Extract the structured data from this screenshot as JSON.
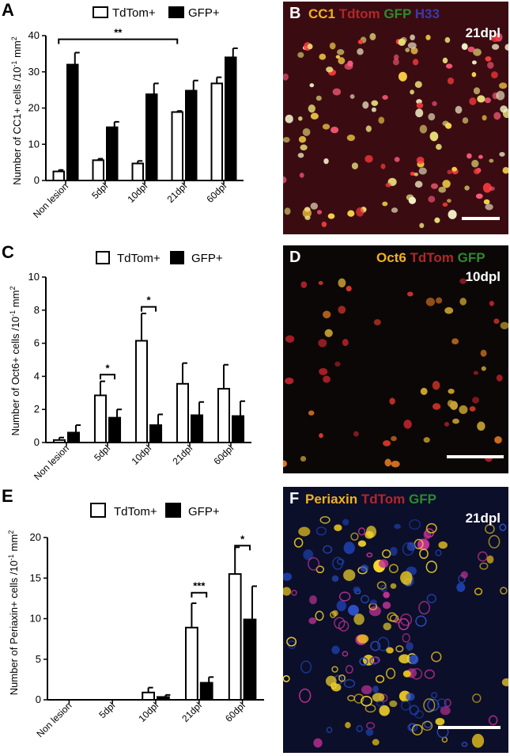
{
  "charts": [
    {
      "panel_letter": "A",
      "ylabel_main": "Number of CC1+ cells /10",
      "ylabel_exp": "-1",
      "ylabel_unit": " mm",
      "ylabel_exp2": "2",
      "legend": [
        "TdTom+",
        "GFP+"
      ]
    },
    {
      "panel_letter": "C",
      "ylabel_main": "Number of Oct6+ cells /10",
      "ylabel_exp": "-1",
      "ylabel_unit": " mm",
      "ylabel_exp2": "2",
      "legend": [
        "TdTom+",
        "GFP+"
      ]
    },
    {
      "panel_letter": "E",
      "ylabel_main": "Number of Periaxin+ cells /10",
      "ylabel_exp": "-1",
      "ylabel_unit": " mm",
      "ylabel_exp2": "2",
      "legend": [
        "TdTom+",
        "GFP+"
      ]
    }
  ],
  "chart_data": [
    {
      "type": "bar",
      "categories": [
        "Non lesion",
        "5dpl",
        "10dpl",
        "21dpl",
        "60dpl"
      ],
      "ylim": [
        0,
        40
      ],
      "yticks": [
        0,
        10,
        20,
        30,
        40
      ],
      "series": [
        {
          "name": "TdTom+",
          "values": [
            2.5,
            5.6,
            4.7,
            18.9,
            26.8
          ],
          "errors": [
            0.4,
            0.4,
            0.7,
            0.3,
            1.7
          ]
        },
        {
          "name": "GFP+",
          "values": [
            32.0,
            14.7,
            23.8,
            24.8,
            34.0
          ],
          "errors": [
            3.3,
            1.5,
            3.0,
            2.8,
            2.5
          ]
        }
      ],
      "significance": [
        {
          "label": "**",
          "from": 0,
          "to": 3,
          "level": 39
        }
      ]
    },
    {
      "type": "bar",
      "categories": [
        "Non lesion",
        "5dpl",
        "10dpl",
        "21dpl",
        "60dpl"
      ],
      "ylim": [
        0,
        10
      ],
      "yticks": [
        0,
        2,
        4,
        6,
        8,
        10
      ],
      "series": [
        {
          "name": "TdTom+",
          "values": [
            0.15,
            2.85,
            6.15,
            3.55,
            3.25
          ],
          "errors": [
            0.15,
            0.85,
            1.65,
            1.25,
            1.45
          ]
        },
        {
          "name": "GFP+",
          "values": [
            0.6,
            1.5,
            1.05,
            1.65,
            1.6
          ],
          "errors": [
            0.45,
            0.5,
            0.65,
            0.8,
            0.9
          ]
        }
      ],
      "significance": [
        {
          "label": "*",
          "group": 1,
          "level": 4.1
        },
        {
          "label": "*",
          "group": 2,
          "level": 8.2
        }
      ]
    },
    {
      "type": "bar",
      "categories": [
        "Non lesion",
        "5dpl",
        "10dpl",
        "21dpl",
        "60dpl"
      ],
      "ylim": [
        0,
        20
      ],
      "yticks": [
        0,
        5,
        10,
        15,
        20
      ],
      "series": [
        {
          "name": "TdTom+",
          "values": [
            0,
            0,
            0.9,
            8.9,
            15.5
          ],
          "errors": [
            0,
            0,
            0.6,
            3.0,
            3.3
          ]
        },
        {
          "name": "GFP+",
          "values": [
            0,
            0,
            0.35,
            2.1,
            9.9
          ],
          "errors": [
            0,
            0,
            0.25,
            0.7,
            4.1
          ]
        }
      ],
      "significance": [
        {
          "label": "***",
          "group": 3,
          "level": 13.2
        },
        {
          "label": "*",
          "group": 4,
          "level": 19.0
        }
      ]
    }
  ],
  "images": [
    {
      "letter": "B",
      "title_parts": [
        {
          "text": "CC1 ",
          "color": "#f2b21d"
        },
        {
          "text": "Tdtom ",
          "color": "#b3262a"
        },
        {
          "text": "GFP ",
          "color": "#2e8a2e"
        },
        {
          "text": "H33",
          "color": "#3a3ab0"
        }
      ],
      "subtitle": "21dpl",
      "bg": "#3a0c12",
      "dot_colors": [
        "#f3f0c8",
        "#ff5a7a",
        "#ffd84a",
        "#ff3b3b",
        "#e8e07a"
      ]
    },
    {
      "letter": "D",
      "title_parts": [
        {
          "text": "Oct6 ",
          "color": "#f2b21d"
        },
        {
          "text": "TdTom ",
          "color": "#b3262a"
        },
        {
          "text": "GFP",
          "color": "#2e8a2e"
        }
      ],
      "subtitle": "10dpl",
      "bg": "#0b0707",
      "dot_colors": [
        "#e0392a",
        "#e37a22",
        "#c9a232",
        "#b8232a"
      ]
    },
    {
      "letter": "F",
      "title_parts": [
        {
          "text": "Periaxin ",
          "color": "#f2b21d"
        },
        {
          "text": "TdTom ",
          "color": "#b3262a"
        },
        {
          "text": "GFP",
          "color": "#2e8a2e"
        }
      ],
      "subtitle": "21dpl",
      "bg": "#0c0f2a",
      "dot_colors": [
        "#f5d52a",
        "#e8c21c",
        "#c8349a",
        "#1d3ea8",
        "#2b4fc4"
      ]
    }
  ]
}
